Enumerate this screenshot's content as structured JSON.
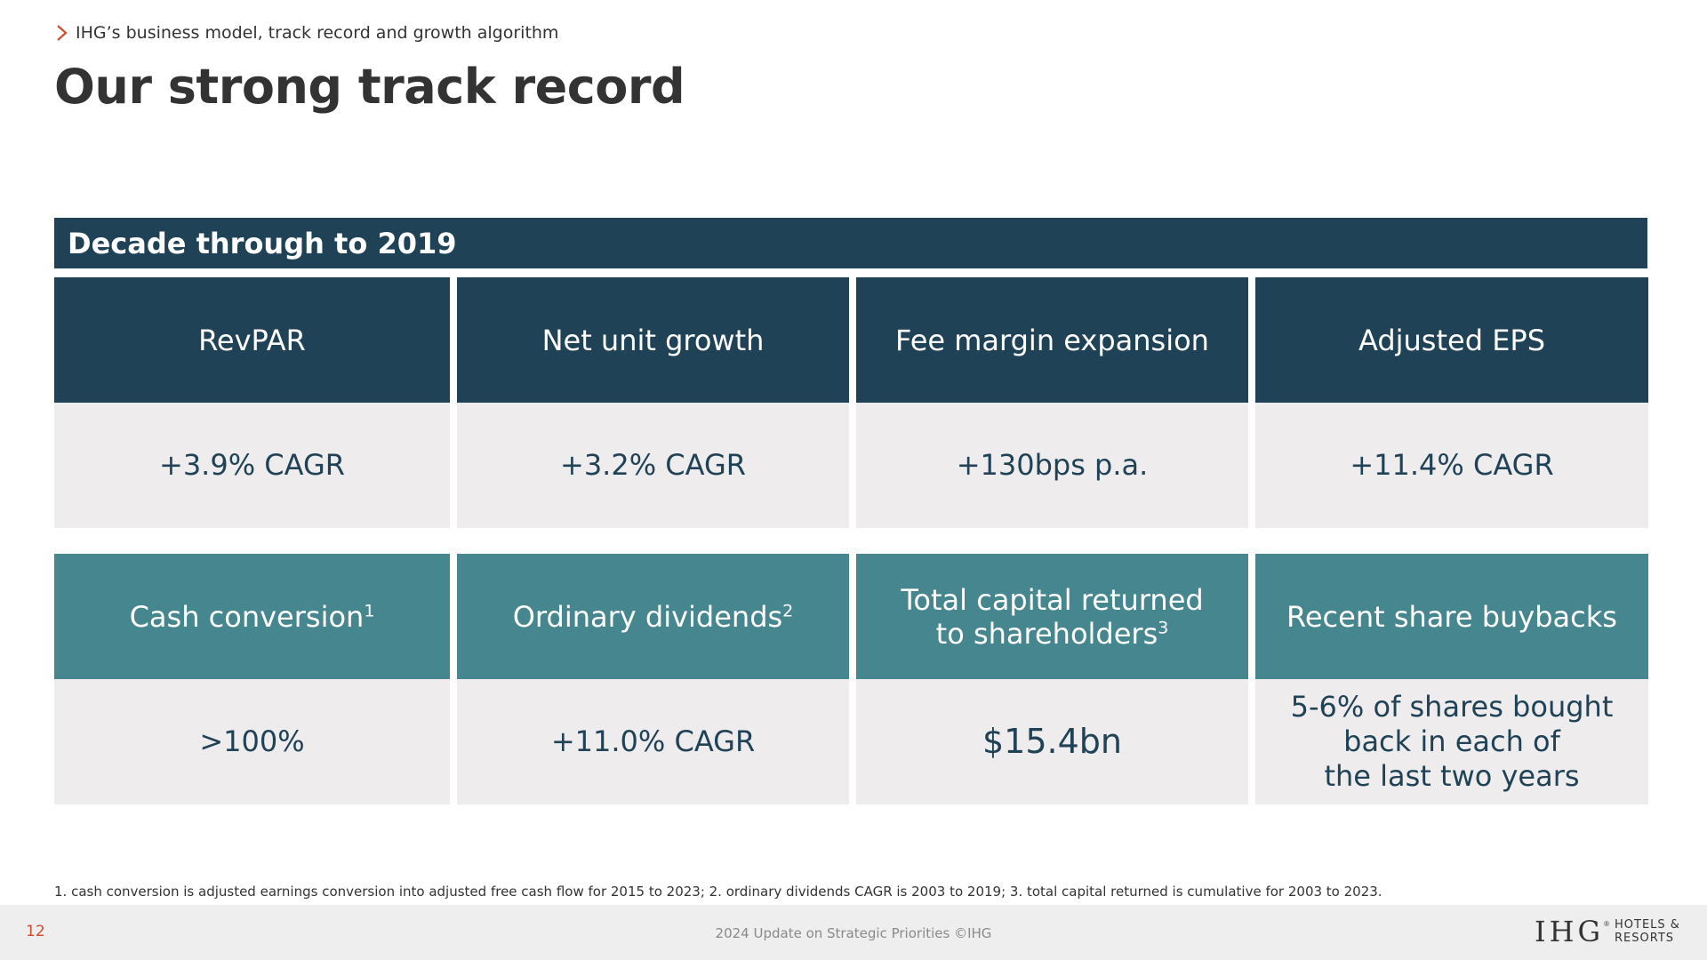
{
  "header": {
    "breadcrumb": "IHG’s business model, track record and growth algorithm",
    "title": "Our strong track record"
  },
  "banner": {
    "label": "Decade through to 2019"
  },
  "metrics_row1": [
    {
      "heading": "RevPAR",
      "value": "+3.9% CAGR"
    },
    {
      "heading": "Net unit growth",
      "value": "+3.2% CAGR"
    },
    {
      "heading": "Fee margin expansion",
      "value": "+130bps p.a."
    },
    {
      "heading": "Adjusted EPS",
      "value": "+11.4% CAGR"
    }
  ],
  "metrics_row2": [
    {
      "heading": "Cash conversion",
      "footnote_ref": "1",
      "value": ">100%"
    },
    {
      "heading": "Ordinary dividends",
      "footnote_ref": "2",
      "value": "+11.0% CAGR"
    },
    {
      "heading_line1": "Total capital returned",
      "heading_line2": "to shareholders",
      "footnote_ref": "3",
      "value": "$15.4bn"
    },
    {
      "heading": "Recent share buybacks",
      "value_line1": "5-6% of shares bought",
      "value_line2": "back in each of",
      "value_line3": "the last two years"
    }
  ],
  "footnote": "1. cash conversion is adjusted earnings conversion into adjusted free cash flow for 2015 to 2023; 2. ordinary dividends CAGR is 2003 to 2019; 3. total capital returned is cumulative for 2003 to 2023.",
  "footer": {
    "page_number": "12",
    "center_text": "2024 Update on Strategic Priorities ©IHG",
    "logo_mark": "IHG",
    "logo_registered": "®",
    "logo_line1": "HOTELS &",
    "logo_line2": "RESORTS"
  },
  "colors": {
    "dark_teal": "#1f4257",
    "mid_teal": "#46878f",
    "value_bg": "#eeecec",
    "accent_red": "#d24a31"
  }
}
